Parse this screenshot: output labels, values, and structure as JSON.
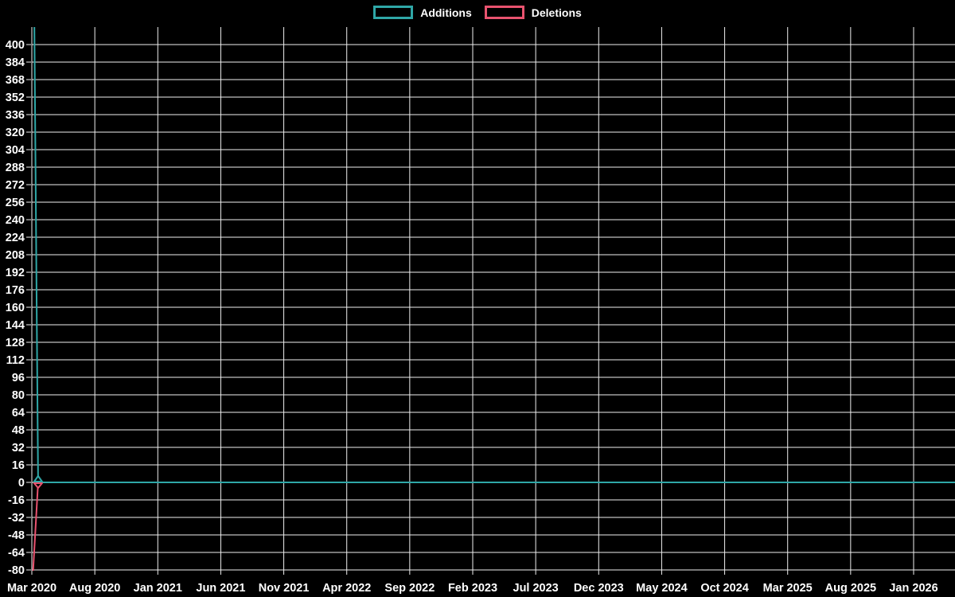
{
  "legend": {
    "items": [
      {
        "label": "Additions",
        "color": "#2fa7a7"
      },
      {
        "label": "Deletions",
        "color": "#e9536f"
      }
    ]
  },
  "colors": {
    "additions": "#2fa7a7",
    "deletions": "#e9536f",
    "grid": "#efefef",
    "text": "#ffffff",
    "background": "#000000"
  },
  "chart_data": {
    "type": "line",
    "title": "",
    "xlabel": "",
    "ylabel": "",
    "grid": true,
    "legend_position": "top-center",
    "x_axis": {
      "tick_labels": [
        "Mar 2020",
        "Aug 2020",
        "Jan 2021",
        "Jun 2021",
        "Nov 2021",
        "Apr 2022",
        "Sep 2022",
        "Feb 2023",
        "Jul 2023",
        "Dec 2023",
        "May 2024",
        "Oct 2024",
        "Mar 2025",
        "Aug 2025",
        "Jan 2026"
      ],
      "tick_interval_months": 5,
      "start": "Mar 2020",
      "end_of_plot_months_after_start": 73.3
    },
    "y_axis": {
      "ticks": [
        400,
        384,
        368,
        352,
        336,
        320,
        304,
        288,
        272,
        256,
        240,
        224,
        208,
        192,
        176,
        160,
        144,
        128,
        112,
        96,
        80,
        64,
        48,
        32,
        16,
        0,
        -16,
        -32,
        -48,
        -64,
        -80
      ],
      "step": 16,
      "max_tick": 400,
      "min_tick": -80,
      "visible_value_range": [
        -85,
        416
      ]
    },
    "series": [
      {
        "name": "Deletions",
        "color": "#e9536f",
        "marker": "triangle-down-open",
        "note": "single downward spike at Mar 2020, then flat at 0",
        "points": [
          {
            "m": 0.1,
            "y": -81
          },
          {
            "m": 0.5,
            "y": 0
          },
          {
            "m": 73.3,
            "y": 0
          }
        ]
      },
      {
        "name": "Additions",
        "color": "#2fa7a7",
        "marker": "triangle-up-open",
        "note": "single upward spike at Mar 2020, clipped at top of plot (value > 416)",
        "points": [
          {
            "m": 0.2,
            "y": 416
          },
          {
            "m": 0.5,
            "y": 0
          },
          {
            "m": 73.3,
            "y": 0
          }
        ]
      }
    ]
  }
}
